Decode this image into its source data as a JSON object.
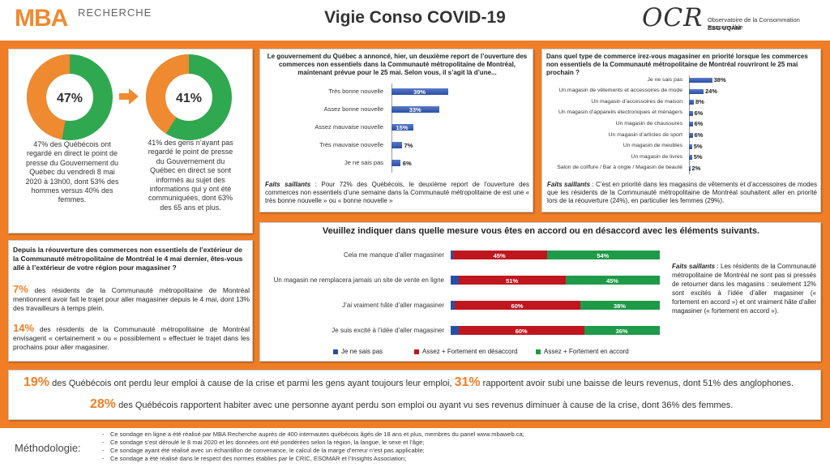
{
  "header": {
    "logo_mba": "MBA",
    "logo_recherche": "RECHERCHE",
    "title": "Vigie Conso COVID-19",
    "logo_ocr": "OCR",
    "ocr_line1": "Observatoire de la Consommation Responsable",
    "ocr_line2": "ESG UQÀM"
  },
  "donuts": {
    "left": {
      "value_label": "47%",
      "value": 47,
      "text": "47% des Québécois ont regardé en direct le point de presse du Gouvernement du Québec du vendredi 8 mai 2020 à 13h00, dont 53% des hommes versus 40% des femmes."
    },
    "right": {
      "value_label": "41%",
      "value": 41,
      "text": "41% des gens n’ayant pas regardé le point de presse du Gouvernement du Québec en direct se sont informés au sujet des informations qui y ont été communiquées, dont 63% des 65 ans et plus."
    },
    "colors": {
      "orange": "#f08a30",
      "green": "#2fa84f"
    }
  },
  "q1": {
    "question": "Le gouvernement du Québec a annoncé, hier, un deuxième report de l’ouverture des commerces non essentiels dans la Communauté métropolitaine de Montréal, maintenant prévue pour le 25 mai. Selon vous, il s’agit là d’une...",
    "faits_label": "Faits saillants",
    "faits": " : Pour 72% des Québécois, le deuxième report de l’ouverture des commerces non essentiels d’une semaine dans la Communauté métropolitaine de est une « très bonne nouvelle » ou « bonne nouvelle »"
  },
  "q2": {
    "question": "Dans quel type de commerce irez-vous magasiner en priorité lorsque les commerces non essentiels de la Communauté métropolitaine de Montréal rouvriront le 25 mai prochain ?",
    "faits_label": "Faits saillants",
    "faits": " : C’est en priorité dans les magasins de vêtements et d’accessoires de modes que les résidents de la Communauté métropolitaine de Montréal souhaitent aller en priorité lors de la réouverture (24%), en particulier les femmes (29%)."
  },
  "q3": {
    "title": "Veuillez indiquer dans quelle mesure vous êtes en accord ou en désaccord avec les éléments suivants.",
    "faits_label": "Faits saillants",
    "faits": " : Les résidents de la Communauté métropolitaine de Montréal ne sont pas si pressés de retourner dans les magasins : seulement 12% sont excités à l’idée d’aller magasiner (« fortement en accord ») et ont vraiment hâte d’aller magasiner (« fortement en accord »)."
  },
  "reopen": {
    "question": "Depuis la réouverture des commerces non essentiels de l’extérieur de la Communauté métropolitaine de Montréal le 4 mai dernier, êtes-vous allé à l’extérieur de votre région pour magasiner ?",
    "p1_pct": "7%",
    "p1": " des résidents de la Communauté métropolitaine de Montréal mentionnent avoir fait le trajet pour aller magasiner depuis le 4 mai, dont 13% des travailleurs à temps plein.",
    "p2_pct": "14%",
    "p2": " des résidents de la Communauté métropolitaine de Montréal envisagent « certainement » ou « possiblement » effectuer le trajet dans les prochains pour aller magasiner."
  },
  "bottom": {
    "l1_pct1": "19%",
    "l1_a": " des Québécois ont perdu leur emploi à cause de la crise et parmi les gens ayant toujours leur emploi, ",
    "l1_pct2": "31%",
    "l1_b": " rapportent avoir subi une baisse de leurs revenus, dont 51% des anglophones.",
    "l2_pct": "28%",
    "l2": " des Québécois rapportent habiter avec une personne ayant perdu son emploi ou ayant vu ses revenus diminuer à cause de la crise, dont 36% des femmes."
  },
  "methodo": {
    "label": "Méthodologie:",
    "items": [
      "Ce sondage en ligne a été réalisé par MBA Recherche auprès de 400 internautes québécois âgés de 18 ans et plus, membres du panel www.mbaweb.ca;",
      "Ce sondage s’est déroulé le 8 mai 2020 et les données ont été pondérées selon la région, la langue, le sexe et l’âge;",
      "Ce sondage ayant été réalisé avec un échantillon de convenance, le calcul de la marge d’erreur n’est pas applicable;",
      "Ce sondage a été réalisé dans le respect des normes établies par le CRIC, ESOMAR et l’Insights Association;"
    ]
  },
  "chart_data": [
    {
      "type": "bar",
      "orientation": "horizontal",
      "categories": [
        "Très bonne nouvelle",
        "Assez bonne nouvelle",
        "Assez mauvaise nouvelle",
        "Très mauvaise nouvelle",
        "Je ne sais pas"
      ],
      "values": [
        39,
        33,
        15,
        7,
        6
      ],
      "value_labels": [
        "39%",
        "33%",
        "15%",
        "7%",
        "6%"
      ],
      "xlim": [
        0,
        100
      ],
      "color": "#2b4ea5"
    },
    {
      "type": "bar",
      "orientation": "horizontal",
      "categories": [
        "Je ne sais pas",
        "Un magasin de vêtements et accessoires de mode",
        "Un magasin d’accessoires de maison",
        "Un magasin d’appareils électroniques et ménagers",
        "Un magasin de chaussures",
        "Un magasin d’articles de sport",
        "Un magasin de meubles",
        "Un magasin de livres",
        "Salon de coiffure / Bar à ongle / Magasin de beauté"
      ],
      "values": [
        38,
        24,
        8,
        6,
        6,
        6,
        5,
        5,
        2
      ],
      "value_labels": [
        "38%",
        "24%",
        "8%",
        "6%",
        "6%",
        "6%",
        "5%",
        "5%",
        "2%"
      ],
      "xlim": [
        0,
        100
      ],
      "color": "#2b4ea5"
    },
    {
      "type": "bar",
      "orientation": "horizontal",
      "stacked": true,
      "categories": [
        "Cela me manque d’aller magasiner",
        "Un magasin ne remplacera jamais un site de vente en ligne",
        "J’ai vraiment hâte d’aller magasiner",
        "Je suis excité à l’idée d’aller magasiner"
      ],
      "series": [
        {
          "name": "Je ne sais pas",
          "values": [
            1,
            4,
            2,
            4
          ],
          "color": "#2b4ea5"
        },
        {
          "name": "Assez + Fortement en désaccord",
          "values": [
            45,
            51,
            60,
            60
          ],
          "labels": [
            "45%",
            "51%",
            "60%",
            "60%"
          ],
          "color": "#c0161e"
        },
        {
          "name": "Assez + Fortement en accord",
          "values": [
            54,
            45,
            38,
            36
          ],
          "labels": [
            "54%",
            "45%",
            "38%",
            "36%"
          ],
          "color": "#1e9a49"
        }
      ],
      "legend": "bottom"
    }
  ]
}
